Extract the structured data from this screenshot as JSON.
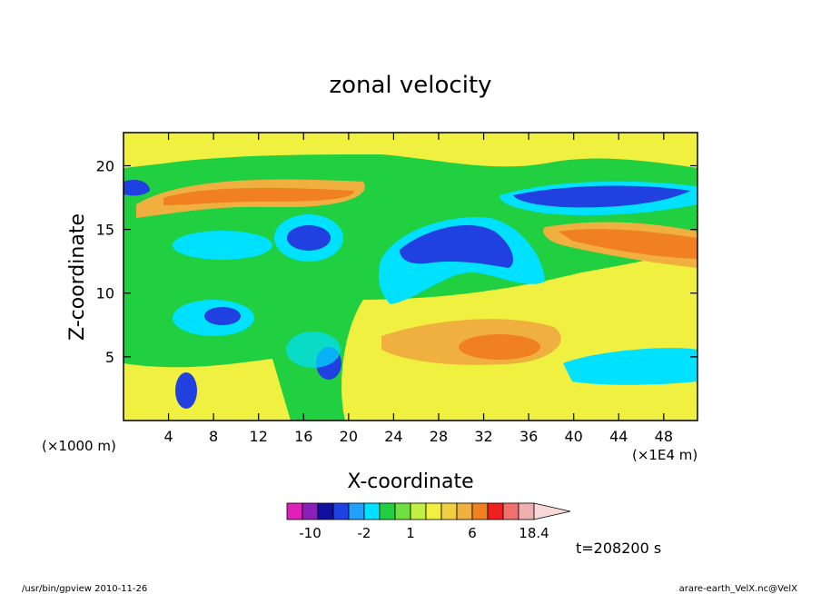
{
  "chart_data": {
    "type": "heatmap",
    "title": "zonal velocity",
    "xlabel": "X-coordinate",
    "ylabel": "Z-coordinate",
    "x_unit_note": "(×1E4 m)",
    "y_unit_note": "(×1000 m)",
    "xlim": [
      0,
      51
    ],
    "ylim": [
      0,
      22.6
    ],
    "x_ticks": [
      4,
      8,
      12,
      16,
      20,
      24,
      28,
      32,
      36,
      40,
      44,
      48
    ],
    "y_ticks": [
      5,
      10,
      15,
      20
    ],
    "colorbar": {
      "labels": [
        {
          "text": "-10",
          "value": -10
        },
        {
          "text": "-2",
          "value": -2
        },
        {
          "text": "1",
          "value": 1
        },
        {
          "text": "6",
          "value": 6
        },
        {
          "text": "18.4",
          "value": 18.4
        }
      ],
      "levels": [
        -16,
        -12,
        -8,
        -4,
        -3,
        -2,
        -1,
        0,
        1,
        2,
        3,
        4,
        6,
        8,
        11,
        14,
        18.4
      ],
      "colors": [
        "#e020b8",
        "#8a20b8",
        "#1010a0",
        "#2040e0",
        "#20a0ff",
        "#00e0ff",
        "#20d040",
        "#70e040",
        "#c0f040",
        "#f0f040",
        "#f0d040",
        "#f0b040",
        "#f08020",
        "#f02020",
        "#f07070",
        "#f0b0b0",
        "#f8d8d8"
      ]
    },
    "grid": false,
    "legend": "colorbar-bottom"
  },
  "time_label": "t=208200 s",
  "footer_left": "/usr/bin/gpview   2010-11-26",
  "footer_right": "arare-earth_VelX.nc@VelX"
}
